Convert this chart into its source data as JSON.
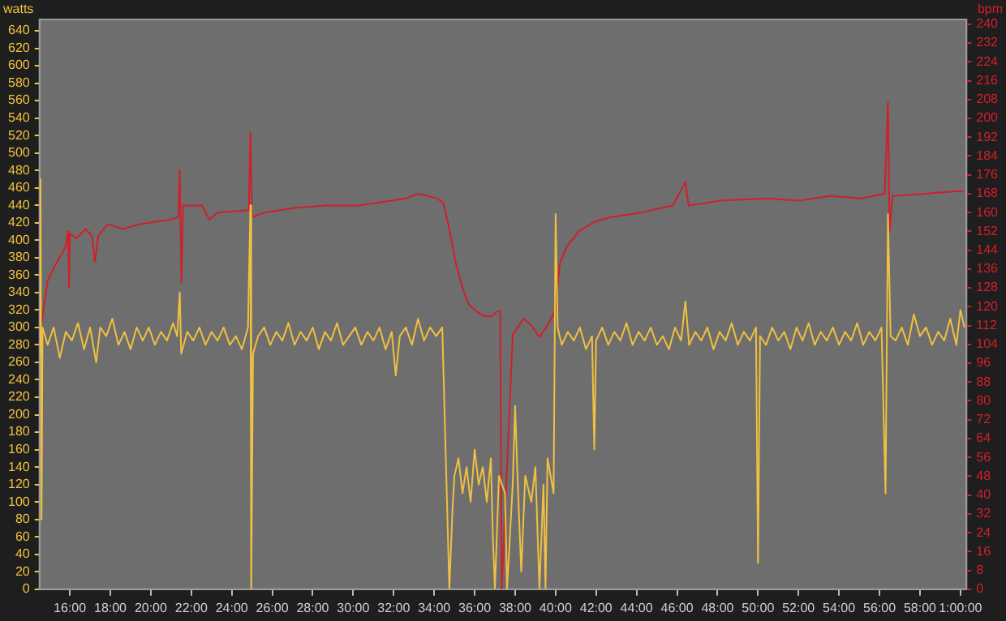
{
  "chart_data": {
    "type": "line",
    "ylabel": "watts",
    "y2label": "bpm",
    "legend": false,
    "xlim": [
      14.5,
      60.3
    ],
    "xticks": [
      {
        "value": 16,
        "label": "16:00"
      },
      {
        "value": 18,
        "label": "18:00"
      },
      {
        "value": 20,
        "label": "20:00"
      },
      {
        "value": 22,
        "label": "22:00"
      },
      {
        "value": 24,
        "label": "24:00"
      },
      {
        "value": 26,
        "label": "26:00"
      },
      {
        "value": 28,
        "label": "28:00"
      },
      {
        "value": 30,
        "label": "30:00"
      },
      {
        "value": 32,
        "label": "32:00"
      },
      {
        "value": 34,
        "label": "34:00"
      },
      {
        "value": 36,
        "label": "36:00"
      },
      {
        "value": 38,
        "label": "38:00"
      },
      {
        "value": 40,
        "label": "40:00"
      },
      {
        "value": 42,
        "label": "42:00"
      },
      {
        "value": 44,
        "label": "44:00"
      },
      {
        "value": 46,
        "label": "46:00"
      },
      {
        "value": 48,
        "label": "48:00"
      },
      {
        "value": 50,
        "label": "50:00"
      },
      {
        "value": 52,
        "label": "52:00"
      },
      {
        "value": 54,
        "label": "54:00"
      },
      {
        "value": 56,
        "label": "56:00"
      },
      {
        "value": 58,
        "label": "58:00"
      },
      {
        "value": 60,
        "label": "1:00:00"
      }
    ],
    "ylim": [
      0,
      653
    ],
    "yticks": [
      0,
      20,
      40,
      60,
      80,
      100,
      120,
      140,
      160,
      180,
      200,
      220,
      240,
      260,
      280,
      300,
      320,
      340,
      360,
      380,
      400,
      420,
      440,
      460,
      480,
      500,
      520,
      540,
      560,
      580,
      600,
      620,
      640
    ],
    "y2lim": [
      0,
      242
    ],
    "y2ticks": [
      0,
      8,
      16,
      24,
      32,
      40,
      48,
      56,
      64,
      72,
      80,
      88,
      96,
      104,
      112,
      120,
      128,
      136,
      144,
      152,
      160,
      168,
      176,
      184,
      192,
      200,
      208,
      216,
      224,
      232,
      240
    ],
    "series": [
      {
        "color": "#f0c040",
        "x": [
          14.5,
          14.55,
          14.6,
          14.65,
          14.9,
          15.2,
          15.5,
          15.8,
          16.1,
          16.4,
          16.7,
          17.0,
          17.3,
          17.5,
          17.8,
          18.1,
          18.4,
          18.7,
          19.0,
          19.3,
          19.6,
          19.9,
          20.2,
          20.5,
          20.8,
          21.1,
          21.3,
          21.43,
          21.5,
          21.8,
          22.1,
          22.4,
          22.7,
          23.0,
          23.3,
          23.6,
          23.9,
          24.2,
          24.5,
          24.8,
          24.92,
          24.96,
          25.05,
          25.3,
          25.6,
          25.9,
          26.2,
          26.5,
          26.8,
          27.1,
          27.4,
          27.7,
          28.0,
          28.3,
          28.6,
          28.9,
          29.2,
          29.5,
          29.8,
          30.1,
          30.4,
          30.7,
          31.0,
          31.3,
          31.6,
          31.9,
          32.1,
          32.3,
          32.6,
          32.9,
          33.2,
          33.5,
          33.8,
          34.1,
          34.4,
          34.75,
          34.9,
          35.0,
          35.2,
          35.4,
          35.6,
          35.8,
          36.0,
          36.2,
          36.4,
          36.6,
          36.8,
          36.9,
          37.0,
          37.2,
          37.5,
          37.6,
          37.88,
          38.0,
          38.1,
          38.3,
          38.5,
          38.8,
          39.0,
          39.2,
          39.4,
          39.5,
          39.6,
          39.9,
          40.0,
          40.1,
          40.3,
          40.6,
          40.9,
          41.2,
          41.5,
          41.8,
          41.91,
          42.0,
          42.3,
          42.6,
          42.9,
          43.2,
          43.5,
          43.8,
          44.1,
          44.4,
          44.7,
          45.0,
          45.3,
          45.6,
          45.9,
          46.2,
          46.41,
          46.6,
          46.9,
          47.2,
          47.5,
          47.8,
          48.1,
          48.4,
          48.7,
          49.0,
          49.3,
          49.6,
          49.9,
          50.0,
          50.1,
          50.4,
          50.7,
          51.0,
          51.3,
          51.6,
          51.9,
          52.2,
          52.5,
          52.8,
          53.1,
          53.4,
          53.7,
          54.0,
          54.3,
          54.6,
          54.9,
          55.2,
          55.5,
          55.8,
          56.1,
          56.3,
          56.42,
          56.55,
          56.8,
          57.1,
          57.4,
          57.7,
          58.0,
          58.3,
          58.6,
          58.9,
          59.2,
          59.5,
          59.8,
          60.0,
          60.2
        ],
        "values": [
          270,
          470,
          80,
          300,
          280,
          300,
          265,
          295,
          285,
          305,
          275,
          300,
          260,
          300,
          290,
          310,
          280,
          295,
          275,
          300,
          285,
          300,
          280,
          295,
          285,
          305,
          290,
          340,
          270,
          295,
          285,
          300,
          280,
          295,
          285,
          300,
          280,
          290,
          275,
          300,
          440,
          0,
          270,
          290,
          300,
          280,
          295,
          285,
          305,
          280,
          295,
          285,
          300,
          275,
          295,
          285,
          305,
          280,
          290,
          300,
          280,
          295,
          285,
          300,
          275,
          295,
          245,
          290,
          300,
          280,
          310,
          285,
          300,
          290,
          300,
          0,
          90,
          130,
          150,
          110,
          140,
          100,
          160,
          120,
          140,
          100,
          150,
          60,
          0,
          130,
          110,
          0,
          120,
          210,
          140,
          20,
          130,
          100,
          140,
          0,
          120,
          0,
          150,
          110,
          430,
          300,
          280,
          295,
          285,
          300,
          275,
          290,
          160,
          285,
          300,
          280,
          295,
          285,
          305,
          280,
          295,
          285,
          300,
          280,
          290,
          275,
          300,
          285,
          330,
          280,
          295,
          285,
          300,
          275,
          295,
          285,
          305,
          280,
          295,
          285,
          300,
          30,
          290,
          280,
          300,
          285,
          295,
          275,
          300,
          285,
          305,
          280,
          295,
          285,
          300,
          280,
          295,
          285,
          305,
          280,
          295,
          285,
          300,
          110,
          430,
          290,
          285,
          300,
          280,
          315,
          290,
          300,
          280,
          295,
          285,
          310,
          280,
          320,
          300
        ]
      },
      {
        "color": "#d0202a",
        "axis": "y2",
        "x": [
          14.6,
          14.9,
          15.3,
          15.77,
          15.92,
          15.96,
          16.0,
          16.31,
          16.78,
          17.09,
          17.24,
          17.4,
          17.86,
          18.64,
          19.41,
          20.19,
          20.97,
          21.35,
          21.43,
          21.51,
          21.59,
          22.52,
          22.9,
          23.29,
          24.84,
          24.92,
          25.0,
          25.62,
          27.17,
          28.72,
          30.27,
          32.6,
          33.22,
          34.15,
          34.46,
          34.77,
          35.08,
          35.4,
          35.7,
          36.09,
          36.48,
          36.87,
          37.1,
          37.26,
          37.34,
          37.88,
          38.42,
          38.81,
          39.2,
          39.58,
          39.97,
          40.2,
          40.51,
          41.14,
          41.91,
          42.69,
          44.24,
          45.79,
          46.41,
          46.57,
          48.12,
          50.44,
          51.99,
          53.55,
          55.1,
          56.26,
          56.42,
          56.5,
          56.65,
          58.2,
          59.75,
          60.14
        ],
        "values": [
          113,
          131,
          138,
          145,
          152,
          128,
          151,
          149,
          153,
          150,
          139,
          150,
          155,
          153,
          155,
          156,
          157,
          158,
          178,
          130,
          163,
          163,
          157,
          160,
          161,
          194,
          158,
          160,
          162,
          163,
          163,
          166,
          168,
          166,
          164,
          152,
          138,
          128,
          121,
          118,
          116,
          116,
          118,
          118,
          0,
          108,
          115,
          112,
          107,
          112,
          118,
          138,
          145,
          152,
          156,
          158,
          160,
          163,
          173,
          163,
          165,
          166,
          165,
          167,
          166,
          168,
          207,
          152,
          167,
          168,
          169,
          169
        ]
      }
    ]
  }
}
